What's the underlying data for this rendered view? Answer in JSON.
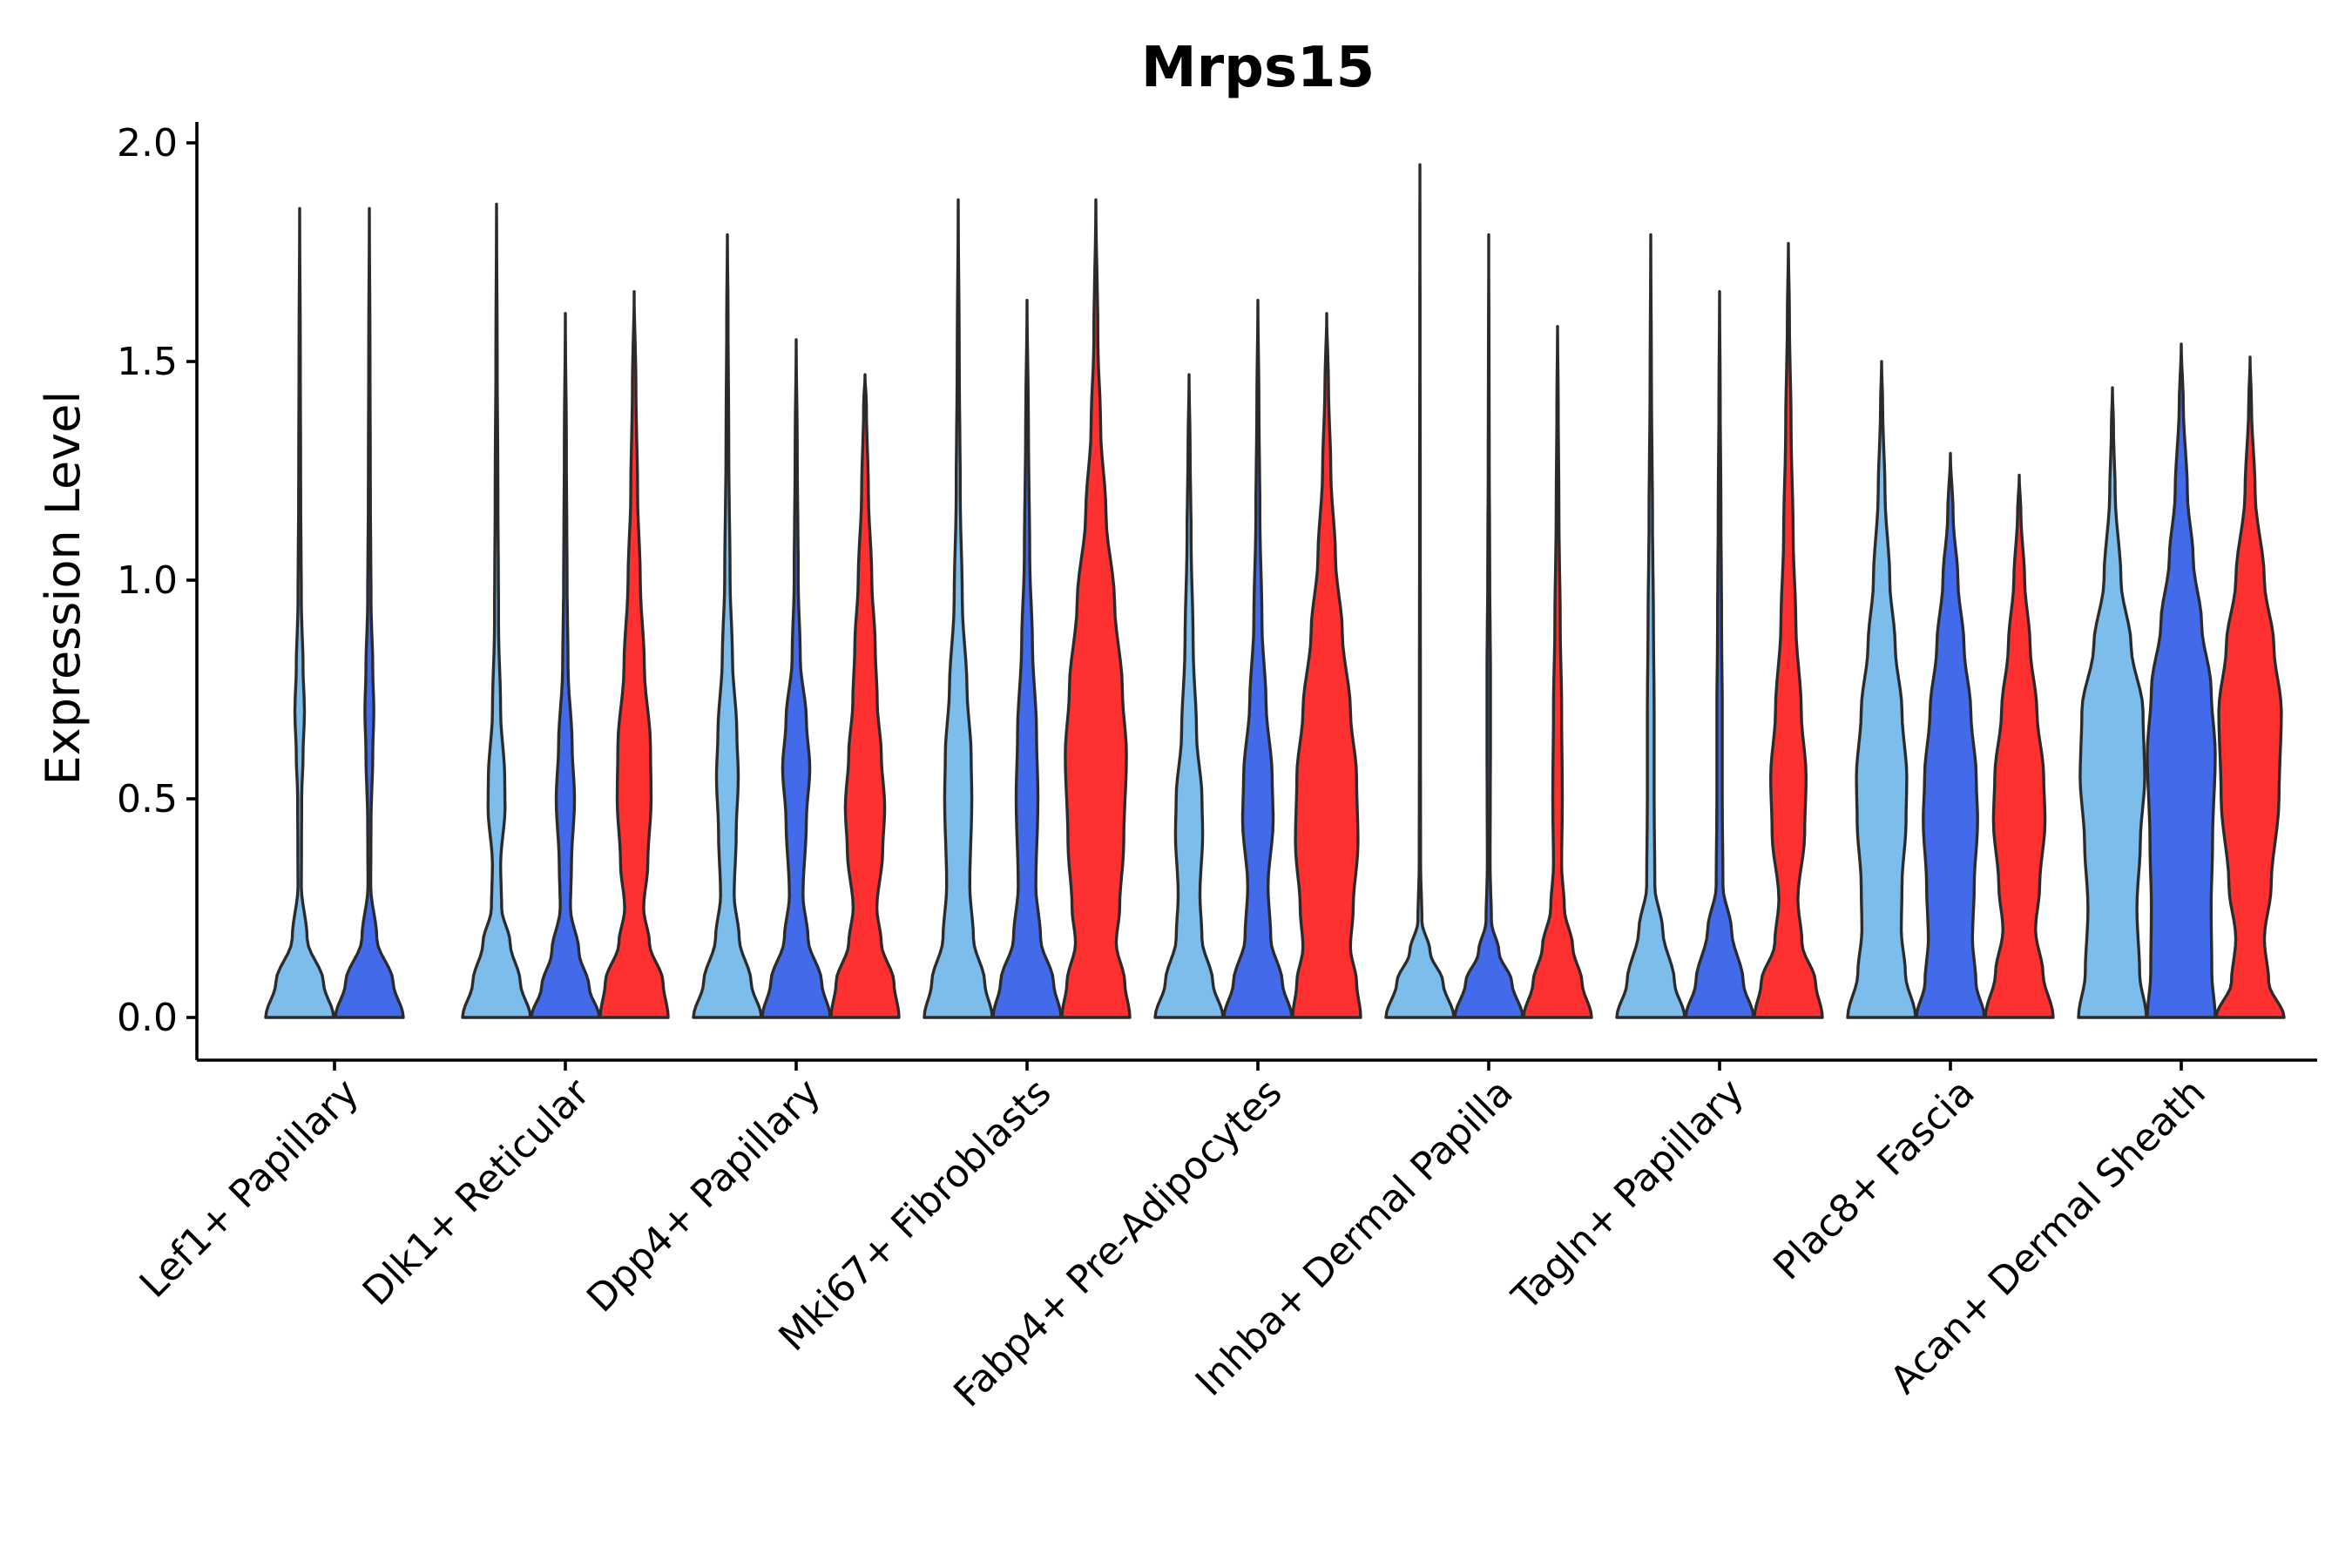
{
  "chart_data": {
    "type": "violin",
    "title": "Mrps15",
    "xlabel": "",
    "ylabel": "Expression Level",
    "ylim": [
      -0.1,
      2.05
    ],
    "yticks": [
      "0.0",
      "0.5",
      "1.0",
      "1.5",
      "2.0"
    ],
    "grid": false,
    "legend": "none",
    "series_colors": [
      "#7dbdeb",
      "#436ae8",
      "#ff3030"
    ],
    "categories": [
      "Lef1+ Papillary",
      "Dlk1+ Reticular",
      "Dpp4+ Papillary",
      "Mki67+ Fibroblasts",
      "Fabp4+ Pre-Adipocytes",
      "Inhba+ Dermal Papilla",
      "Tagln+ Papillary",
      "Plac8+ Fascia",
      "Acan+ Dermal Sheath"
    ],
    "violins": [
      {
        "category": 0,
        "series": 0,
        "max": 1.85,
        "profile": [
          [
            0,
            1
          ],
          [
            0.08,
            0.7
          ],
          [
            0.18,
            0.22
          ],
          [
            0.3,
            0.05
          ],
          [
            0.5,
            0.06
          ],
          [
            0.6,
            0.1
          ],
          [
            0.7,
            0.14
          ],
          [
            0.8,
            0.1
          ],
          [
            0.95,
            0.05
          ],
          [
            1.2,
            0.03
          ],
          [
            1.5,
            0.02
          ]
        ]
      },
      {
        "category": 0,
        "series": 1,
        "max": 1.85,
        "profile": [
          [
            0,
            1
          ],
          [
            0.08,
            0.7
          ],
          [
            0.18,
            0.22
          ],
          [
            0.3,
            0.04
          ],
          [
            0.45,
            0.05
          ],
          [
            0.6,
            0.1
          ],
          [
            0.7,
            0.13
          ],
          [
            0.8,
            0.1
          ],
          [
            0.95,
            0.05
          ],
          [
            1.2,
            0.03
          ],
          [
            1.5,
            0.02
          ]
        ]
      },
      {
        "category": 1,
        "series": 0,
        "max": 1.86,
        "profile": [
          [
            0,
            1
          ],
          [
            0.08,
            0.7
          ],
          [
            0.17,
            0.4
          ],
          [
            0.25,
            0.15
          ],
          [
            0.35,
            0.12
          ],
          [
            0.48,
            0.25
          ],
          [
            0.55,
            0.24
          ],
          [
            0.7,
            0.12
          ],
          [
            0.9,
            0.06
          ],
          [
            1.2,
            0.04
          ],
          [
            1.5,
            0.02
          ]
        ]
      },
      {
        "category": 1,
        "series": 1,
        "max": 1.61,
        "profile": [
          [
            0,
            1
          ],
          [
            0.07,
            0.7
          ],
          [
            0.15,
            0.4
          ],
          [
            0.25,
            0.15
          ],
          [
            0.35,
            0.18
          ],
          [
            0.5,
            0.27
          ],
          [
            0.62,
            0.2
          ],
          [
            0.8,
            0.08
          ],
          [
            1.0,
            0.05
          ],
          [
            1.3,
            0.03
          ]
        ]
      },
      {
        "category": 1,
        "series": 2,
        "max": 1.66,
        "profile": [
          [
            0,
            1
          ],
          [
            0.08,
            0.85
          ],
          [
            0.17,
            0.45
          ],
          [
            0.25,
            0.28
          ],
          [
            0.35,
            0.4
          ],
          [
            0.5,
            0.5
          ],
          [
            0.62,
            0.48
          ],
          [
            0.8,
            0.3
          ],
          [
            1.0,
            0.18
          ],
          [
            1.2,
            0.1
          ],
          [
            1.45,
            0.05
          ]
        ]
      },
      {
        "category": 2,
        "series": 0,
        "max": 1.79,
        "profile": [
          [
            0,
            1
          ],
          [
            0.08,
            0.7
          ],
          [
            0.18,
            0.35
          ],
          [
            0.28,
            0.2
          ],
          [
            0.42,
            0.26
          ],
          [
            0.55,
            0.32
          ],
          [
            0.65,
            0.28
          ],
          [
            0.82,
            0.15
          ],
          [
            1.0,
            0.08
          ],
          [
            1.3,
            0.04
          ],
          [
            1.6,
            0.02
          ]
        ]
      },
      {
        "category": 2,
        "series": 1,
        "max": 1.55,
        "profile": [
          [
            0,
            1
          ],
          [
            0.08,
            0.75
          ],
          [
            0.18,
            0.35
          ],
          [
            0.28,
            0.2
          ],
          [
            0.45,
            0.3
          ],
          [
            0.57,
            0.4
          ],
          [
            0.68,
            0.3
          ],
          [
            0.82,
            0.12
          ],
          [
            1.0,
            0.06
          ],
          [
            1.3,
            0.03
          ]
        ]
      },
      {
        "category": 2,
        "series": 2,
        "max": 1.47,
        "profile": [
          [
            0,
            1
          ],
          [
            0.08,
            0.85
          ],
          [
            0.17,
            0.48
          ],
          [
            0.25,
            0.35
          ],
          [
            0.38,
            0.52
          ],
          [
            0.48,
            0.58
          ],
          [
            0.6,
            0.48
          ],
          [
            0.72,
            0.36
          ],
          [
            0.85,
            0.3
          ],
          [
            1.0,
            0.2
          ],
          [
            1.2,
            0.1
          ],
          [
            1.4,
            0.04
          ]
        ]
      },
      {
        "category": 3,
        "series": 0,
        "max": 1.87,
        "profile": [
          [
            0,
            1
          ],
          [
            0.08,
            0.78
          ],
          [
            0.18,
            0.45
          ],
          [
            0.3,
            0.34
          ],
          [
            0.5,
            0.4
          ],
          [
            0.6,
            0.38
          ],
          [
            0.75,
            0.26
          ],
          [
            0.95,
            0.12
          ],
          [
            1.2,
            0.06
          ],
          [
            1.5,
            0.03
          ]
        ]
      },
      {
        "category": 3,
        "series": 1,
        "max": 1.64,
        "profile": [
          [
            0,
            1
          ],
          [
            0.08,
            0.78
          ],
          [
            0.18,
            0.4
          ],
          [
            0.3,
            0.26
          ],
          [
            0.5,
            0.32
          ],
          [
            0.65,
            0.28
          ],
          [
            0.85,
            0.16
          ],
          [
            1.05,
            0.08
          ],
          [
            1.35,
            0.04
          ]
        ]
      },
      {
        "category": 3,
        "series": 2,
        "max": 1.87,
        "profile": [
          [
            0,
            1
          ],
          [
            0.08,
            0.85
          ],
          [
            0.17,
            0.6
          ],
          [
            0.25,
            0.7
          ],
          [
            0.4,
            0.82
          ],
          [
            0.6,
            0.9
          ],
          [
            0.75,
            0.78
          ],
          [
            0.95,
            0.55
          ],
          [
            1.15,
            0.3
          ],
          [
            1.35,
            0.14
          ],
          [
            1.55,
            0.06
          ]
        ]
      },
      {
        "category": 4,
        "series": 0,
        "max": 1.47,
        "profile": [
          [
            0,
            1
          ],
          [
            0.08,
            0.7
          ],
          [
            0.18,
            0.38
          ],
          [
            0.28,
            0.32
          ],
          [
            0.42,
            0.4
          ],
          [
            0.5,
            0.38
          ],
          [
            0.65,
            0.22
          ],
          [
            0.85,
            0.12
          ],
          [
            1.1,
            0.06
          ],
          [
            1.3,
            0.03
          ]
        ]
      },
      {
        "category": 4,
        "series": 1,
        "max": 1.64,
        "profile": [
          [
            0,
            1
          ],
          [
            0.08,
            0.72
          ],
          [
            0.18,
            0.38
          ],
          [
            0.3,
            0.3
          ],
          [
            0.45,
            0.45
          ],
          [
            0.55,
            0.42
          ],
          [
            0.72,
            0.24
          ],
          [
            0.9,
            0.12
          ],
          [
            1.15,
            0.06
          ],
          [
            1.4,
            0.03
          ]
        ]
      },
      {
        "category": 4,
        "series": 2,
        "max": 1.61,
        "profile": [
          [
            0,
            1
          ],
          [
            0.08,
            0.88
          ],
          [
            0.16,
            0.7
          ],
          [
            0.25,
            0.78
          ],
          [
            0.4,
            0.92
          ],
          [
            0.55,
            0.88
          ],
          [
            0.7,
            0.7
          ],
          [
            0.88,
            0.46
          ],
          [
            1.05,
            0.26
          ],
          [
            1.25,
            0.12
          ],
          [
            1.45,
            0.05
          ]
        ]
      },
      {
        "category": 5,
        "series": 0,
        "max": 1.95,
        "profile": [
          [
            0,
            1
          ],
          [
            0.08,
            0.68
          ],
          [
            0.15,
            0.3
          ],
          [
            0.22,
            0.06
          ],
          [
            0.35,
            0.02
          ],
          [
            0.7,
            0.015
          ],
          [
            1.2,
            0.01
          ],
          [
            1.6,
            0.005
          ]
        ]
      },
      {
        "category": 5,
        "series": 1,
        "max": 1.79,
        "profile": [
          [
            0,
            1
          ],
          [
            0.08,
            0.68
          ],
          [
            0.15,
            0.3
          ],
          [
            0.22,
            0.08
          ],
          [
            0.35,
            0.04
          ],
          [
            0.6,
            0.05
          ],
          [
            0.8,
            0.05
          ],
          [
            1.0,
            0.03
          ],
          [
            1.3,
            0.015
          ]
        ]
      },
      {
        "category": 5,
        "series": 2,
        "max": 1.58,
        "profile": [
          [
            0,
            1
          ],
          [
            0.08,
            0.72
          ],
          [
            0.16,
            0.45
          ],
          [
            0.25,
            0.2
          ],
          [
            0.35,
            0.12
          ],
          [
            0.5,
            0.14
          ],
          [
            0.7,
            0.12
          ],
          [
            0.9,
            0.08
          ],
          [
            1.15,
            0.04
          ],
          [
            1.4,
            0.02
          ]
        ]
      },
      {
        "category": 6,
        "series": 0,
        "max": 1.79,
        "profile": [
          [
            0,
            1
          ],
          [
            0.08,
            0.7
          ],
          [
            0.2,
            0.35
          ],
          [
            0.3,
            0.12
          ],
          [
            0.5,
            0.1
          ],
          [
            0.7,
            0.1
          ],
          [
            0.9,
            0.08
          ],
          [
            1.15,
            0.05
          ],
          [
            1.45,
            0.02
          ]
        ]
      },
      {
        "category": 6,
        "series": 1,
        "max": 1.66,
        "profile": [
          [
            0,
            1
          ],
          [
            0.08,
            0.7
          ],
          [
            0.2,
            0.35
          ],
          [
            0.3,
            0.1
          ],
          [
            0.5,
            0.08
          ],
          [
            0.7,
            0.08
          ],
          [
            0.9,
            0.06
          ],
          [
            1.15,
            0.04
          ],
          [
            1.4,
            0.02
          ]
        ]
      },
      {
        "category": 6,
        "series": 2,
        "max": 1.77,
        "profile": [
          [
            0,
            1
          ],
          [
            0.08,
            0.8
          ],
          [
            0.17,
            0.4
          ],
          [
            0.27,
            0.28
          ],
          [
            0.42,
            0.48
          ],
          [
            0.55,
            0.52
          ],
          [
            0.7,
            0.38
          ],
          [
            0.9,
            0.22
          ],
          [
            1.1,
            0.14
          ],
          [
            1.35,
            0.08
          ],
          [
            1.6,
            0.03
          ]
        ]
      },
      {
        "category": 7,
        "series": 0,
        "max": 1.5,
        "profile": [
          [
            0,
            1
          ],
          [
            0.1,
            0.7
          ],
          [
            0.2,
            0.58
          ],
          [
            0.3,
            0.6
          ],
          [
            0.45,
            0.72
          ],
          [
            0.55,
            0.74
          ],
          [
            0.7,
            0.6
          ],
          [
            0.85,
            0.4
          ],
          [
            1.0,
            0.24
          ],
          [
            1.2,
            0.1
          ],
          [
            1.4,
            0.03
          ]
        ]
      },
      {
        "category": 7,
        "series": 1,
        "max": 1.29,
        "profile": [
          [
            0,
            1
          ],
          [
            0.08,
            0.75
          ],
          [
            0.18,
            0.65
          ],
          [
            0.3,
            0.7
          ],
          [
            0.45,
            0.8
          ],
          [
            0.55,
            0.76
          ],
          [
            0.7,
            0.6
          ],
          [
            0.85,
            0.4
          ],
          [
            1.0,
            0.22
          ],
          [
            1.15,
            0.08
          ]
        ]
      },
      {
        "category": 7,
        "series": 2,
        "max": 1.24,
        "profile": [
          [
            0,
            1
          ],
          [
            0.1,
            0.7
          ],
          [
            0.2,
            0.48
          ],
          [
            0.3,
            0.6
          ],
          [
            0.45,
            0.76
          ],
          [
            0.55,
            0.72
          ],
          [
            0.7,
            0.52
          ],
          [
            0.85,
            0.32
          ],
          [
            1.0,
            0.16
          ],
          [
            1.15,
            0.05
          ]
        ]
      },
      {
        "category": 8,
        "series": 0,
        "max": 1.44,
        "profile": [
          [
            0,
            1
          ],
          [
            0.1,
            0.8
          ],
          [
            0.25,
            0.72
          ],
          [
            0.4,
            0.82
          ],
          [
            0.55,
            0.95
          ],
          [
            0.7,
            0.9
          ],
          [
            0.85,
            0.55
          ],
          [
            1.0,
            0.25
          ],
          [
            1.2,
            0.08
          ],
          [
            1.35,
            0.03
          ]
        ]
      },
      {
        "category": 8,
        "series": 1,
        "max": 1.54,
        "profile": [
          [
            0,
            1
          ],
          [
            0.1,
            0.9
          ],
          [
            0.25,
            0.88
          ],
          [
            0.4,
            0.92
          ],
          [
            0.6,
            1.0
          ],
          [
            0.75,
            0.88
          ],
          [
            0.9,
            0.6
          ],
          [
            1.05,
            0.35
          ],
          [
            1.2,
            0.18
          ],
          [
            1.4,
            0.06
          ]
        ]
      },
      {
        "category": 8,
        "series": 2,
        "max": 1.51,
        "profile": [
          [
            0,
            1
          ],
          [
            0.08,
            0.55
          ],
          [
            0.18,
            0.42
          ],
          [
            0.3,
            0.62
          ],
          [
            0.5,
            0.85
          ],
          [
            0.7,
            0.92
          ],
          [
            0.85,
            0.7
          ],
          [
            1.0,
            0.42
          ],
          [
            1.2,
            0.15
          ],
          [
            1.4,
            0.04
          ]
        ]
      }
    ]
  }
}
